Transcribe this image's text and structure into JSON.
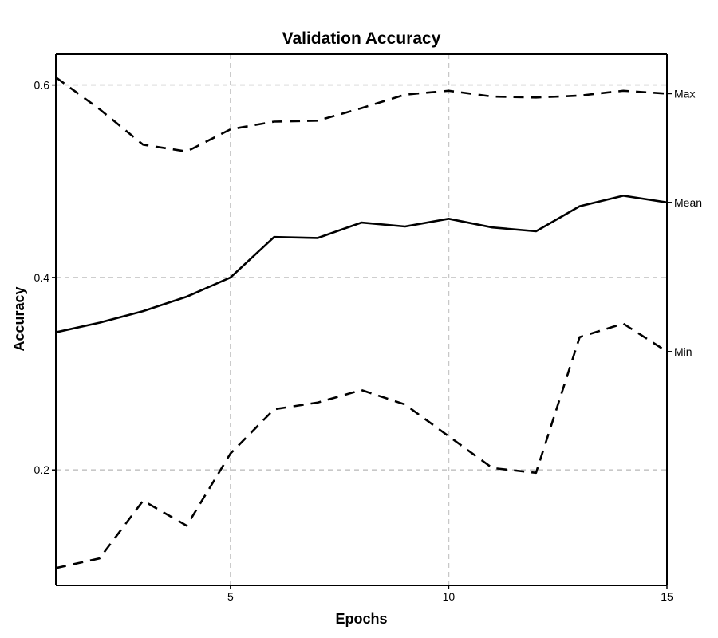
{
  "chart_data": {
    "type": "line",
    "title": "Validation Accuracy",
    "xlabel": "Epochs",
    "ylabel": "Accuracy",
    "xlim": [
      1,
      15
    ],
    "ylim": [
      0.08,
      0.632
    ],
    "x_ticks": [
      5,
      10,
      15
    ],
    "x_tick_labels": [
      "5",
      "10",
      "15"
    ],
    "y_ticks": [
      0.2,
      0.4,
      0.6
    ],
    "y_tick_labels": [
      "0.2",
      "0.4",
      "0.6"
    ],
    "grid": true,
    "legend": "labels at right end of each line",
    "x": [
      1,
      2,
      3,
      4,
      5,
      6,
      7,
      8,
      9,
      10,
      11,
      12,
      13,
      14,
      15
    ],
    "series": [
      {
        "name": "Max",
        "line_style": "dashed",
        "color": "#000000",
        "values": [
          0.608,
          0.575,
          0.538,
          0.531,
          0.554,
          0.562,
          0.563,
          0.576,
          0.59,
          0.594,
          0.588,
          0.587,
          0.589,
          0.594,
          0.591
        ]
      },
      {
        "name": "Mean",
        "line_style": "solid",
        "color": "#000000",
        "values": [
          0.343,
          0.353,
          0.365,
          0.38,
          0.4,
          0.442,
          0.441,
          0.457,
          0.453,
          0.461,
          0.452,
          0.448,
          0.474,
          0.485,
          0.478
        ]
      },
      {
        "name": "Min",
        "line_style": "dashed",
        "color": "#000000",
        "values": [
          0.098,
          0.108,
          0.168,
          0.142,
          0.217,
          0.263,
          0.27,
          0.283,
          0.268,
          0.235,
          0.202,
          0.197,
          0.338,
          0.352,
          0.323
        ]
      }
    ]
  }
}
